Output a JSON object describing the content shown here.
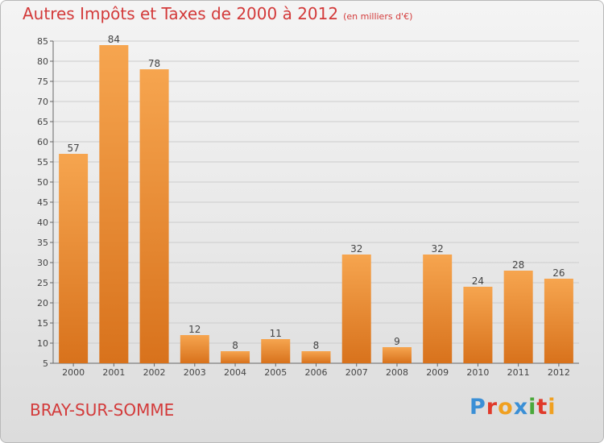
{
  "title": "Autres Impôts et Taxes de 2000 à 2012",
  "unit": "(en milliers d'€)",
  "commune": "BRAY-SUR-SOMME",
  "brand": "Proxiti",
  "colors": {
    "title": "#d33a3a",
    "bar_light": "#f6a54f",
    "bar_dark": "#d8721c",
    "grid": "#cccccc",
    "brand_letters": [
      "#3a8fd6",
      "#e03a2a",
      "#f0a020",
      "#3a8fd6",
      "#4aa83a",
      "#e03a2a",
      "#f0a020"
    ]
  },
  "chart_data": {
    "type": "bar",
    "categories": [
      "2000",
      "2001",
      "2002",
      "2003",
      "2004",
      "2005",
      "2006",
      "2007",
      "2008",
      "2009",
      "2010",
      "2011",
      "2012"
    ],
    "values": [
      57,
      84,
      78,
      12,
      8,
      11,
      8,
      32,
      9,
      32,
      24,
      28,
      26
    ],
    "title": "Autres Impôts et Taxes de 2000 à 2012",
    "xlabel": "",
    "ylabel": "",
    "ylim": [
      5,
      85
    ],
    "yticks": [
      5,
      10,
      15,
      20,
      25,
      30,
      35,
      40,
      45,
      50,
      55,
      60,
      65,
      70,
      75,
      80,
      85
    ],
    "grid": true,
    "data_labels": true
  }
}
